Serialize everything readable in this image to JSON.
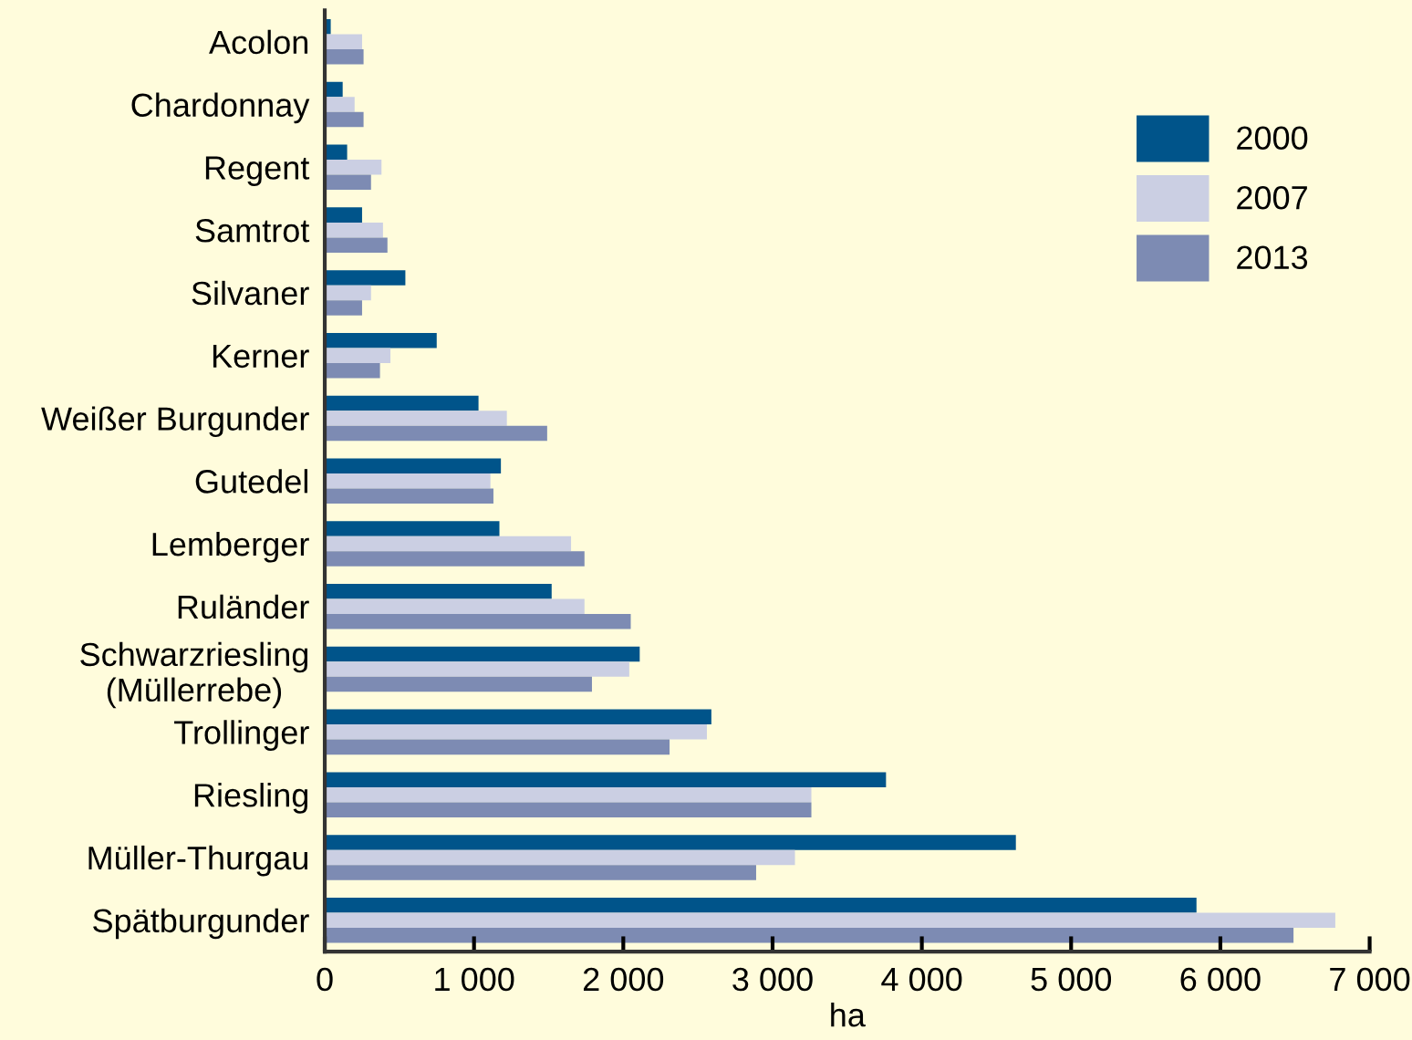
{
  "chart_data": {
    "type": "bar",
    "orientation": "horizontal",
    "xlabel": "ha",
    "categories": [
      "Acolon",
      "Chardonnay",
      "Regent",
      "Samtrot",
      "Silvaner",
      "Kerner",
      "Weißer Burgunder",
      "Gutedel",
      "Lemberger",
      "Ruländer",
      "Schwarzriesling\n(Müllerrebe)",
      "Trollinger",
      "Riesling",
      "Müller-Thurgau",
      "Spätburgunder"
    ],
    "series": [
      {
        "name": "2000",
        "color": "#00548a",
        "values": [
          40,
          120,
          150,
          250,
          540,
          750,
          1030,
          1180,
          1170,
          1520,
          2110,
          2590,
          3760,
          4630,
          5840
        ]
      },
      {
        "name": "2007",
        "color": "#cbcfe3",
        "values": [
          250,
          200,
          380,
          390,
          310,
          440,
          1220,
          1110,
          1650,
          1740,
          2040,
          2560,
          3260,
          3150,
          6770
        ]
      },
      {
        "name": "2013",
        "color": "#7d8bb3",
        "values": [
          260,
          260,
          310,
          420,
          250,
          370,
          1490,
          1130,
          1740,
          2050,
          1790,
          2310,
          3260,
          2890,
          6490
        ]
      }
    ],
    "xlim": [
      0,
      7000
    ],
    "xticks": [
      0,
      {
        "value": 1000,
        "label": "1 000"
      },
      {
        "value": 2000,
        "label": "2 000"
      },
      {
        "value": 3000,
        "label": "3 000"
      },
      {
        "value": 4000,
        "label": "4 000"
      },
      {
        "value": 5000,
        "label": "5 000"
      },
      {
        "value": 6000,
        "label": "6 000"
      },
      {
        "value": 7000,
        "label": "7 000"
      }
    ],
    "legend": "top right",
    "grid": false
  }
}
